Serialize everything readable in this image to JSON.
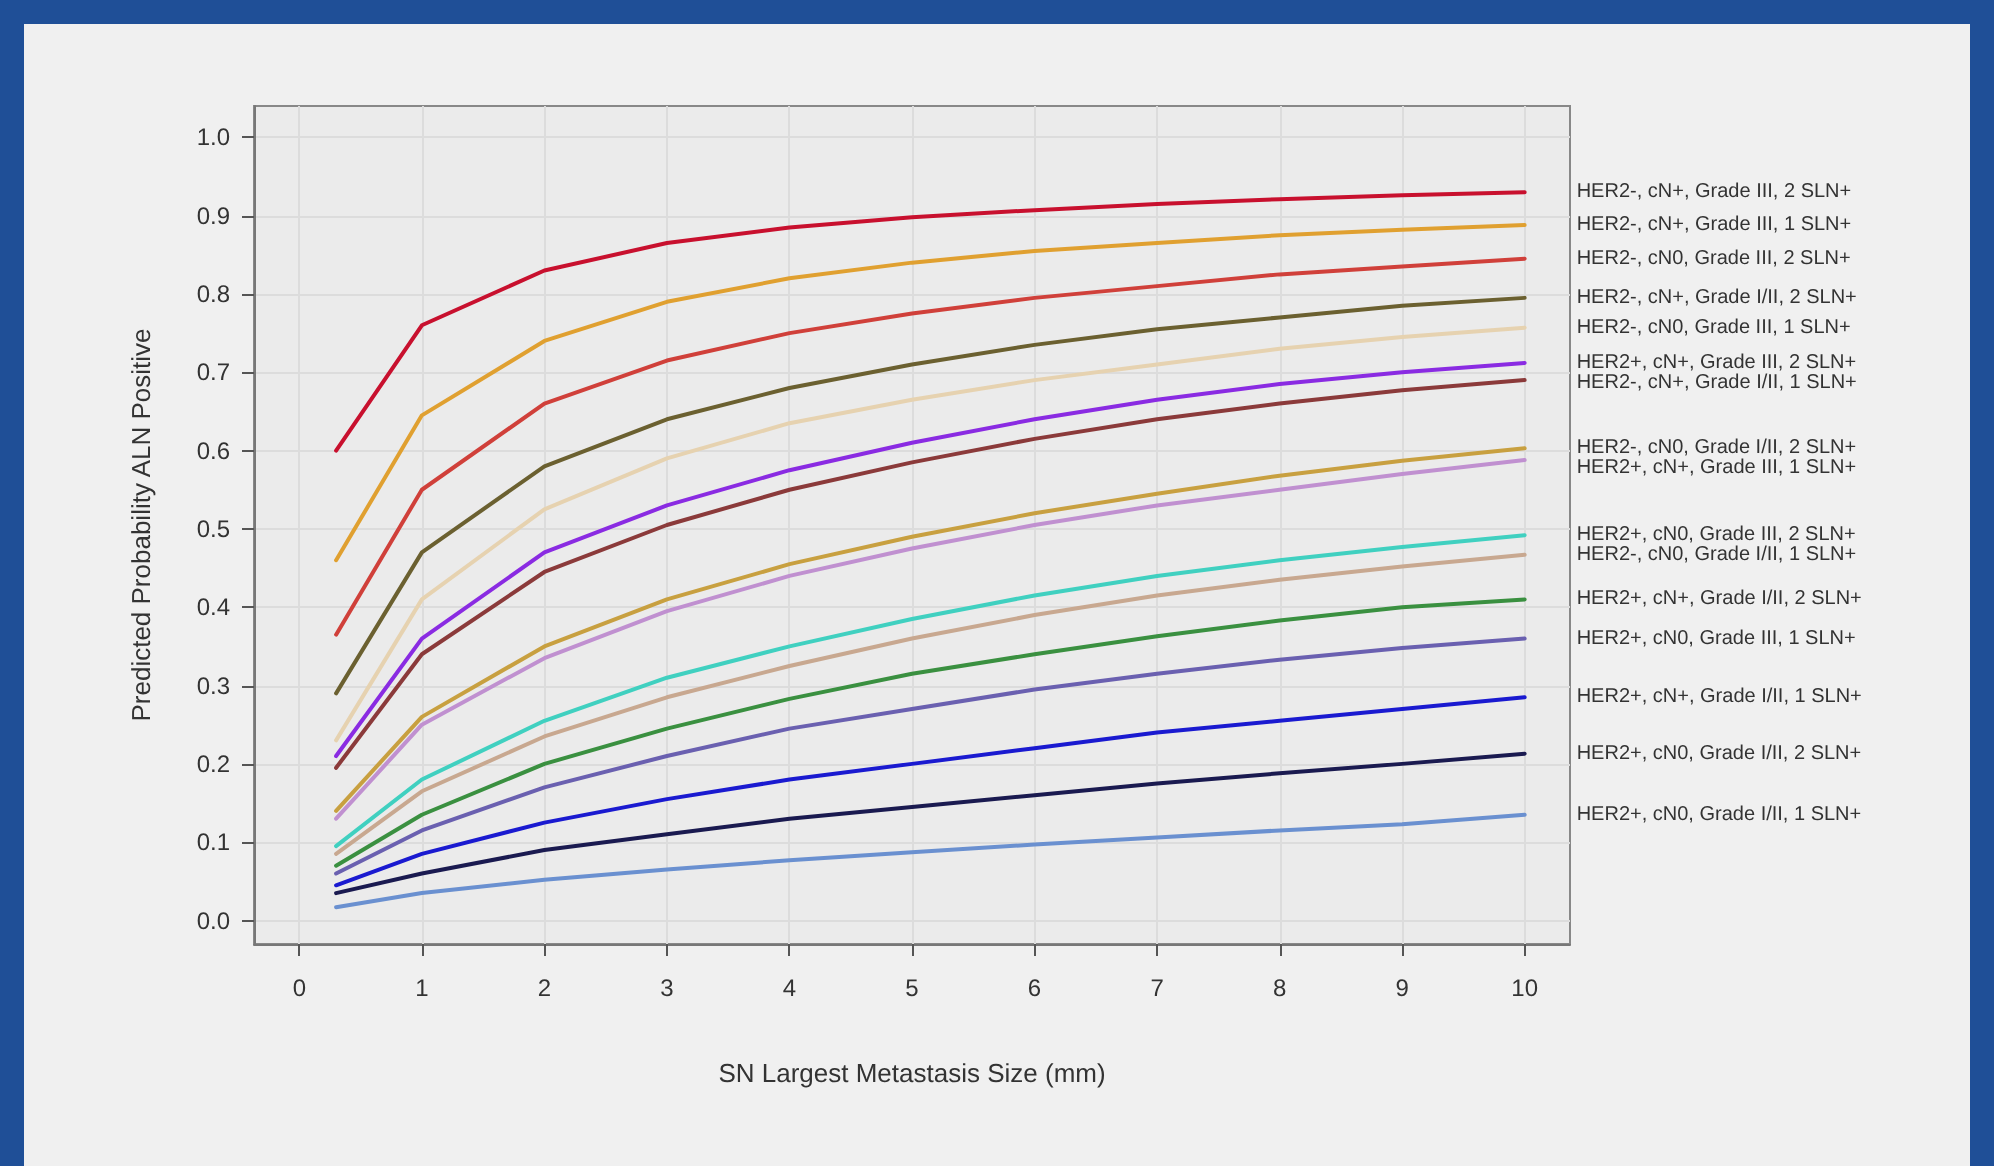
{
  "chart_data": {
    "type": "line",
    "xlabel": "SN Largest Metastasis Size (mm)",
    "ylabel": "Predicted Probability ALN Positive",
    "x": [
      0.3,
      1,
      2,
      3,
      4,
      5,
      6,
      7,
      8,
      9,
      10
    ],
    "xlim": [
      -0.37,
      10.37
    ],
    "xticks": [
      0,
      1,
      2,
      3,
      4,
      5,
      6,
      7,
      8,
      9,
      10
    ],
    "ylim": [
      -0.03,
      1.04
    ],
    "yticks": [
      {
        "value": 0,
        "label": "0.0"
      },
      {
        "value": 0.1,
        "label": "0.1"
      },
      {
        "value": 0.2,
        "label": "0.2"
      },
      {
        "value": 0.3,
        "label": "0.3"
      },
      {
        "value": 0.4,
        "label": "0.4"
      },
      {
        "value": 0.5,
        "label": "0.5"
      },
      {
        "value": 0.6,
        "label": "0.6"
      },
      {
        "value": 0.7,
        "label": "0.7"
      },
      {
        "value": 0.8,
        "label": "0.8"
      },
      {
        "value": 0.9,
        "label": "0.9"
      },
      {
        "value": 1,
        "label": "1.0"
      }
    ],
    "grid": true,
    "legend": false,
    "marker": "none",
    "line_style": "solid",
    "series": [
      {
        "name": "HER2-, cN+, Grade III, 2 SLN+",
        "color": "#c8102e",
        "values": [
          0.6,
          0.76,
          0.83,
          0.865,
          0.885,
          0.898,
          0.907,
          0.915,
          0.921,
          0.926,
          0.93
        ]
      },
      {
        "name": "HER2-, cN+, Grade III, 1 SLN+",
        "color": "#e0a030",
        "values": [
          0.46,
          0.645,
          0.74,
          0.79,
          0.82,
          0.84,
          0.855,
          0.865,
          0.875,
          0.882,
          0.888
        ]
      },
      {
        "name": "HER2-, cN0, Grade III, 2 SLN+",
        "color": "#d0403a",
        "values": [
          0.365,
          0.55,
          0.66,
          0.715,
          0.75,
          0.775,
          0.795,
          0.81,
          0.825,
          0.835,
          0.845
        ]
      },
      {
        "name": "HER2-, cN+, Grade I/II, 2 SLN+",
        "color": "#6b6030",
        "values": [
          0.29,
          0.47,
          0.58,
          0.64,
          0.68,
          0.71,
          0.735,
          0.755,
          0.77,
          0.785,
          0.795
        ]
      },
      {
        "name": "HER2-, cN0, Grade III, 1 SLN+",
        "color": "#e6d2b0",
        "values": [
          0.23,
          0.41,
          0.525,
          0.59,
          0.635,
          0.665,
          0.69,
          0.71,
          0.73,
          0.745,
          0.757
        ]
      },
      {
        "name": "HER2+, cN+, Grade III, 2 SLN+",
        "color": "#8a2be2",
        "values": [
          0.21,
          0.36,
          0.47,
          0.53,
          0.575,
          0.61,
          0.64,
          0.665,
          0.685,
          0.7,
          0.712
        ]
      },
      {
        "name": "HER2-, cN+, Grade I/II, 1 SLN+",
        "color": "#8b3a3a",
        "values": [
          0.195,
          0.34,
          0.445,
          0.505,
          0.55,
          0.585,
          0.615,
          0.64,
          0.66,
          0.677,
          0.69
        ]
      },
      {
        "name": "HER2-, cN0, Grade I/II, 2 SLN+",
        "color": "#c8a040",
        "values": [
          0.14,
          0.26,
          0.35,
          0.41,
          0.455,
          0.49,
          0.52,
          0.545,
          0.568,
          0.587,
          0.603
        ]
      },
      {
        "name": "HER2+, cN+, Grade III, 1 SLN+",
        "color": "#c090d0",
        "values": [
          0.13,
          0.25,
          0.335,
          0.395,
          0.44,
          0.475,
          0.505,
          0.53,
          0.55,
          0.57,
          0.588
        ]
      },
      {
        "name": "HER2+, cN0, Grade III, 2 SLN+",
        "color": "#40d0c0",
        "values": [
          0.095,
          0.18,
          0.255,
          0.31,
          0.35,
          0.385,
          0.415,
          0.44,
          0.46,
          0.477,
          0.492
        ]
      },
      {
        "name": "HER2-, cN0, Grade I/II, 1 SLN+",
        "color": "#c8a890",
        "values": [
          0.085,
          0.165,
          0.235,
          0.285,
          0.325,
          0.36,
          0.39,
          0.415,
          0.435,
          0.452,
          0.467
        ]
      },
      {
        "name": "HER2+, cN+, Grade I/II, 2 SLN+",
        "color": "#3a9040",
        "values": [
          0.07,
          0.135,
          0.2,
          0.245,
          0.283,
          0.315,
          0.34,
          0.363,
          0.383,
          0.4,
          0.41
        ]
      },
      {
        "name": "HER2+, cN0, Grade III, 1 SLN+",
        "color": "#6a60b0",
        "values": [
          0.06,
          0.115,
          0.17,
          0.21,
          0.245,
          0.27,
          0.295,
          0.315,
          0.333,
          0.348,
          0.36
        ]
      },
      {
        "name": "HER2+, cN+, Grade I/II, 1 SLN+",
        "color": "#1a1ad0",
        "values": [
          0.045,
          0.085,
          0.125,
          0.155,
          0.18,
          0.2,
          0.22,
          0.24,
          0.255,
          0.27,
          0.285
        ]
      },
      {
        "name": "HER2+, cN0, Grade I/II, 2 SLN+",
        "color": "#1a1a50",
        "values": [
          0.035,
          0.06,
          0.09,
          0.11,
          0.13,
          0.145,
          0.16,
          0.175,
          0.188,
          0.2,
          0.213
        ]
      },
      {
        "name": "HER2+, cN0, Grade I/II, 1 SLN+",
        "color": "#6a90d0",
        "values": [
          0.017,
          0.035,
          0.052,
          0.065,
          0.077,
          0.087,
          0.097,
          0.106,
          0.115,
          0.123,
          0.135
        ]
      }
    ]
  }
}
